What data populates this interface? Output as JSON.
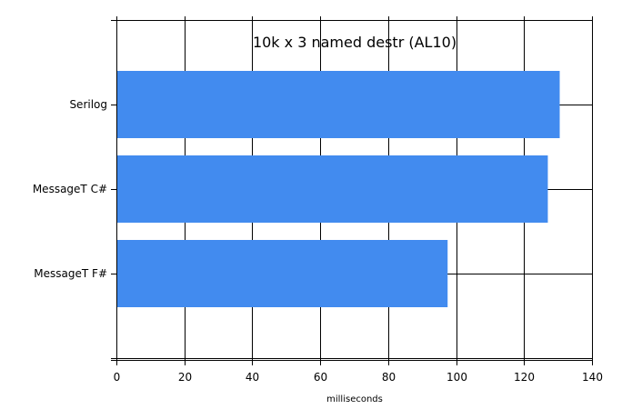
{
  "chart_data": {
    "type": "bar",
    "orientation": "horizontal",
    "title": "10k x 3 named destr (AL10)",
    "xlabel": "milliseconds",
    "ylabel": "",
    "categories": [
      "Serilog",
      "MessageT C#",
      "MessageT F#"
    ],
    "values": [
      130.5,
      127,
      97.5
    ],
    "xlim": [
      0,
      140
    ],
    "xticks": [
      "0",
      "20",
      "40",
      "60",
      "80",
      "100",
      "120",
      "140"
    ],
    "grid": true,
    "legend": "none",
    "bar_color": "#428bef",
    "grid_color": "#000000"
  }
}
